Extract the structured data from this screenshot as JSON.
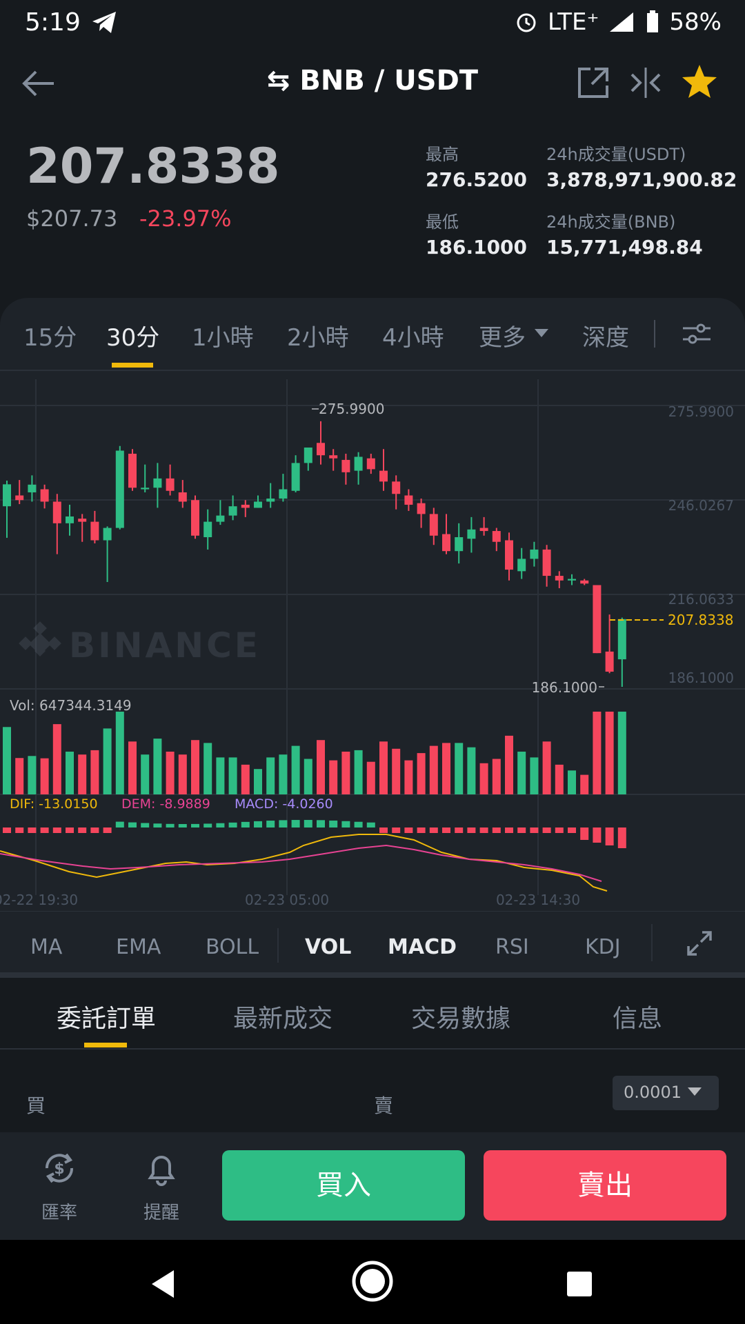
{
  "status_bar": {
    "time": "5:19",
    "network": "LTE⁺",
    "battery": "58%"
  },
  "header": {
    "pair": "⇆ BNB / USDT"
  },
  "ticker": {
    "price": "207.8338",
    "usd_price": "$207.73",
    "change": "-23.97%",
    "high_label": "最高",
    "high": "276.5200",
    "low_label": "最低",
    "low": "186.1000",
    "vol_usdt_label": "24h成交量(USDT)",
    "vol_usdt": "3,878,971,900.82",
    "vol_bnb_label": "24h成交量(BNB)",
    "vol_bnb": "15,771,498.84"
  },
  "intervals": [
    "15分",
    "30分",
    "1小時",
    "2小時",
    "4小時",
    "更多",
    "深度"
  ],
  "chart": {
    "y_ticks": [
      "275.9900",
      "246.0267",
      "216.0633",
      "186.1000"
    ],
    "hi_label": "275.9900",
    "lo_label": "186.1000",
    "current_label": "207.8338",
    "watermark": "BINANCE",
    "vol_label": "Vol: 647344.3149",
    "dif": "DIF: -13.0150",
    "dem": "DEM: -8.9889",
    "macd": "MACD: -4.0260",
    "x_ticks": [
      "02-22 19:30",
      "02-23 05:00",
      "02-23 14:30"
    ]
  },
  "indicators": [
    "MA",
    "EMA",
    "BOLL",
    "VOL",
    "MACD",
    "RSI",
    "KDJ"
  ],
  "order_tabs": [
    "委託訂單",
    "最新成交",
    "交易數據",
    "信息"
  ],
  "orderbook": {
    "buy_label": "買",
    "sell_label": "賣",
    "precision": "0.0001"
  },
  "bottom": {
    "rate_label": "匯率",
    "alert_label": "提醒",
    "buy_button": "買入",
    "sell_button": "賣出"
  },
  "colors": {
    "up": "#2ebd85",
    "down": "#f6465d",
    "accent": "#f0b90b"
  },
  "chart_data": {
    "type": "candlestick",
    "candles": [
      [
        244.5,
        251.6,
        234.3,
        252.8
      ],
      [
        248.0,
        246.5,
        245.2,
        253.0
      ],
      [
        249.0,
        251.5,
        246.0,
        254.5
      ],
      [
        250.0,
        246.0,
        243.8,
        251.5
      ],
      [
        246.0,
        239.0,
        229.0,
        248.5
      ],
      [
        239.0,
        241.2,
        235.0,
        245.0
      ],
      [
        240.5,
        239.5,
        233.0,
        242.0
      ],
      [
        239.5,
        233.5,
        232.5,
        243.0
      ],
      [
        233.5,
        237.5,
        220.0,
        238.0
      ],
      [
        237.5,
        262.5,
        237.0,
        264.0
      ],
      [
        261.5,
        250.5,
        249.5,
        263.0
      ],
      [
        250.0,
        250.5,
        249.0,
        258.0
      ],
      [
        250.5,
        253.5,
        244.0,
        258.5
      ],
      [
        253.5,
        249.5,
        248.0,
        258.0
      ],
      [
        249.0,
        246.0,
        244.0,
        253.0
      ],
      [
        246.5,
        235.0,
        234.0,
        248.0
      ],
      [
        234.5,
        239.5,
        230.5,
        243.5
      ],
      [
        239.5,
        241.5,
        238.5,
        246.5
      ],
      [
        241.5,
        244.5,
        240.0,
        248.0
      ],
      [
        245.0,
        244.0,
        241.0,
        246.5
      ],
      [
        244.0,
        246.0,
        244.0,
        248.0
      ],
      [
        246.0,
        247.0,
        244.0,
        252.0
      ],
      [
        247.0,
        250.0,
        246.0,
        255.0
      ],
      [
        249.5,
        258.5,
        249.0,
        261.0
      ],
      [
        258.5,
        263.5,
        256.0,
        263.5
      ],
      [
        265.0,
        261.0,
        258.0,
        272.0
      ],
      [
        261.0,
        260.0,
        256.0,
        263.0
      ],
      [
        259.5,
        255.5,
        251.5,
        261.5
      ],
      [
        256.0,
        260.5,
        251.5,
        262.0
      ],
      [
        260.0,
        256.5,
        255.0,
        261.5
      ],
      [
        256.0,
        252.5,
        249.5,
        263.0
      ],
      [
        252.5,
        248.5,
        243.5,
        254.5
      ],
      [
        248.0,
        245.0,
        243.0,
        250.0
      ],
      [
        245.5,
        242.0,
        237.5,
        247.0
      ],
      [
        242.0,
        235.0,
        232.0,
        244.0
      ],
      [
        235.5,
        230.0,
        229.0,
        242.0
      ],
      [
        230.0,
        234.5,
        226.0,
        239.0
      ],
      [
        234.0,
        237.0,
        229.5,
        241.0
      ],
      [
        237.5,
        236.5,
        235.0,
        241.0
      ],
      [
        236.5,
        233.0,
        230.0,
        237.5
      ],
      [
        233.5,
        224.0,
        220.5,
        236.0
      ],
      [
        223.5,
        227.5,
        221.0,
        231.0
      ],
      [
        227.5,
        230.5,
        225.0,
        233.0
      ],
      [
        230.5,
        222.0,
        218.5,
        232.0
      ],
      [
        222.0,
        220.5,
        218.0,
        223.5
      ],
      [
        220.5,
        221.0,
        219.0,
        222.5
      ],
      [
        220.5,
        219.5,
        219.0,
        221.0
      ],
      [
        219.0,
        197.0,
        197.0,
        219.0
      ],
      [
        197.5,
        191.0,
        190.5,
        209.5
      ],
      [
        195.0,
        208.0,
        186.1,
        208.5
      ]
    ]
  }
}
